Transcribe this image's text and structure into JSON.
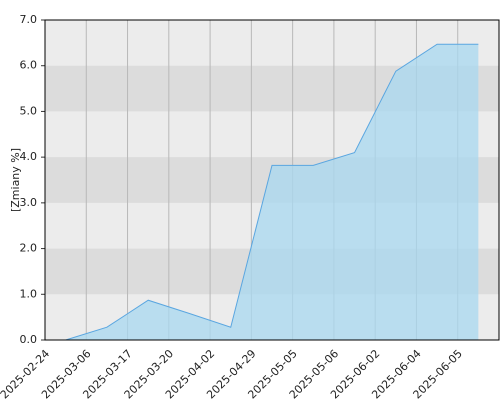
{
  "chart_data": {
    "type": "area",
    "y_label": "[Zmiany %]",
    "categories": [
      "2025-02-24",
      "2025-03-06",
      "2025-03-17",
      "2025-03-20",
      "2025-04-02",
      "2025-04-29",
      "2025-05-05",
      "2025-05-06",
      "2025-06-02",
      "2025-06-04",
      "2025-06-05"
    ],
    "values": [
      0.0,
      0.28,
      0.87,
      0.58,
      0.28,
      3.82,
      3.82,
      4.1,
      5.88,
      6.47,
      6.47
    ],
    "color": "#5aa6e0",
    "fill": "#a8d8f0",
    "ylim": [
      0,
      7
    ],
    "yticks": [
      {
        "value": 0,
        "label": "0.0"
      },
      {
        "value": 1,
        "label": "1.0"
      },
      {
        "value": 2,
        "label": "2.0"
      },
      {
        "value": 3,
        "label": "3.0"
      },
      {
        "value": 4,
        "label": "4.0"
      },
      {
        "value": 5,
        "label": "5.0"
      },
      {
        "value": 6,
        "label": "6.0"
      },
      {
        "value": 7,
        "label": "7.0"
      }
    ],
    "grid": true
  }
}
